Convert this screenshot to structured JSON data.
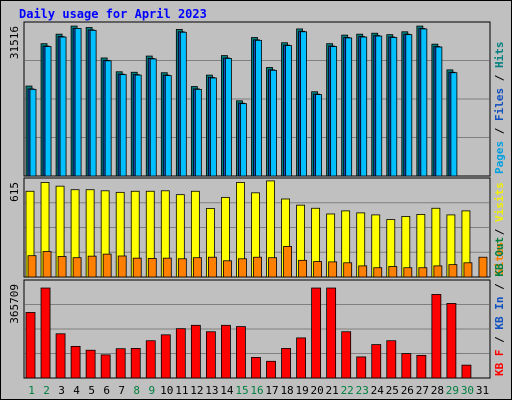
{
  "chart_data": {
    "type": "bar",
    "title": "Daily usage for April 2023",
    "categories": [
      "1",
      "2",
      "3",
      "4",
      "5",
      "6",
      "7",
      "8",
      "9",
      "10",
      "11",
      "12",
      "13",
      "14",
      "15",
      "16",
      "17",
      "18",
      "19",
      "20",
      "21",
      "22",
      "23",
      "24",
      "25",
      "26",
      "27",
      "28",
      "29",
      "30",
      "31"
    ],
    "weekend_days": [
      "1",
      "2",
      "8",
      "9",
      "15",
      "16",
      "22",
      "23",
      "29",
      "30"
    ],
    "panels": [
      {
        "name": "hits-files-pages",
        "max_label": "31516",
        "ylim": [
          0,
          31516
        ],
        "axis_labels": [
          {
            "text": "Pages",
            "color": "#00a0e0"
          },
          {
            "text": "Files",
            "color": "#1050c0"
          },
          {
            "text": "Hits",
            "color": "#008080"
          }
        ],
        "series": [
          {
            "name": "Hits",
            "color": "#008080",
            "values": [
              18900,
              27800,
              29800,
              31500,
              31200,
              24800,
              21900,
              21800,
              25200,
              21700,
              30800,
              18800,
              21200,
              25300,
              15800,
              29100,
              22800,
              28000,
              30900,
              17700,
              27800,
              29600,
              29800,
              30000,
              29700,
              30300,
              31500,
              27700,
              22300,
              0,
              0
            ]
          },
          {
            "name": "Files",
            "color": "#1050c0",
            "values": [
              18300,
              27300,
              29300,
              31000,
              30700,
              24300,
              21400,
              21300,
              24700,
              21200,
              30300,
              18300,
              20700,
              24800,
              15300,
              28600,
              22300,
              27500,
              30400,
              17200,
              27300,
              29100,
              29300,
              29500,
              29200,
              29800,
              31000,
              27200,
              21800,
              0,
              0
            ]
          },
          {
            "name": "Pages",
            "color": "#00c0ff",
            "values": [
              18200,
              27200,
              29200,
              31000,
              30600,
              24200,
              21300,
              21200,
              24600,
              21100,
              30200,
              18200,
              20600,
              24700,
              15200,
              28500,
              22200,
              27400,
              30300,
              17100,
              27200,
              29000,
              29200,
              29400,
              29100,
              29700,
              30900,
              27100,
              21700,
              0,
              0
            ]
          }
        ]
      },
      {
        "name": "visits-sites",
        "max_label": "615",
        "ylim": [
          0,
          615
        ],
        "axis_labels": [
          {
            "text": "Sites",
            "color": "#ff8000"
          },
          {
            "text": "Visits",
            "color": "#f0f000"
          }
        ],
        "series": [
          {
            "name": "Visits",
            "color": "#ffff00",
            "values": [
              555,
              612,
              588,
              565,
              565,
              558,
              548,
              555,
              555,
              558,
              533,
              555,
              444,
              515,
              612,
              545,
              622,
              505,
              465,
              445,
              408,
              428,
              415,
              402,
              372,
              392,
              405,
              445,
              402,
              428,
              0
            ]
          },
          {
            "name": "Sites",
            "color": "#ff8000",
            "values": [
              138,
              165,
              133,
              125,
              135,
              148,
              136,
              122,
              120,
              122,
              118,
              125,
              128,
              105,
              118,
              128,
              125,
              198,
              108,
              100,
              98,
              92,
              72,
              60,
              68,
              60,
              60,
              72,
              80,
              92,
              128
            ]
          }
        ]
      },
      {
        "name": "kbytes",
        "max_label": "365709",
        "ylim": [
          0,
          365709
        ],
        "axis_labels": [
          {
            "text": "KB F",
            "color": "#ff0000"
          },
          {
            "text": "KB In",
            "color": "#1050c0"
          },
          {
            "text": "KB Out",
            "color": "#008040"
          }
        ],
        "series": [
          {
            "name": "KB F",
            "color": "#ff0000",
            "values": [
              255000,
              350000,
              172000,
              123000,
              108000,
              90000,
              114000,
              115000,
              145000,
              168000,
              192000,
              205000,
              180000,
              205000,
              200000,
              80000,
              65000,
              115000,
              156000,
              350000,
              350000,
              180000,
              82000,
              130000,
              145000,
              95000,
              88000,
              325000,
              290000,
              50000,
              0
            ]
          }
        ]
      }
    ]
  }
}
